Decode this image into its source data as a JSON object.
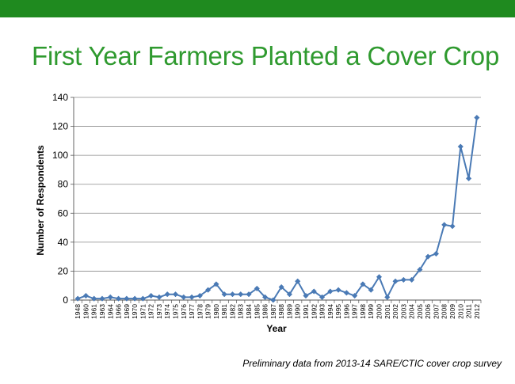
{
  "slide": {
    "title": "First Year Farmers Planted a Cover Crop",
    "footnote": "Preliminary data from 2013-14 SARE/CTIC cover crop survey",
    "accent_color": "#1f8a1f",
    "title_color": "#2f9a2f"
  },
  "chart_data": {
    "type": "line",
    "xlabel": "Year",
    "ylabel": "Number of Respondents",
    "ylim": [
      0,
      140
    ],
    "yticks": [
      0,
      20,
      40,
      60,
      80,
      100,
      120,
      140
    ],
    "grid": "horizontal",
    "series_color": "#4a7ab5",
    "categories": [
      "1948",
      "1960",
      "1961",
      "1963",
      "1964",
      "1966",
      "1969",
      "1970",
      "1971",
      "1972",
      "1973",
      "1974",
      "1975",
      "1976",
      "1977",
      "1978",
      "1979",
      "1980",
      "1981",
      "1982",
      "1983",
      "1984",
      "1985",
      "1986",
      "1987",
      "1988",
      "1989",
      "1990",
      "1991",
      "1992",
      "1993",
      "1994",
      "1995",
      "1996",
      "1997",
      "1998",
      "1999",
      "2000",
      "2001",
      "2002",
      "2003",
      "2004",
      "2005",
      "2006",
      "2007",
      "2008",
      "2009",
      "2010",
      "2011",
      "2012"
    ],
    "series": [
      {
        "values": [
          1,
          3,
          1,
          1,
          2,
          1,
          1,
          1,
          1,
          3,
          2,
          4,
          4,
          2,
          2,
          3,
          7,
          11,
          4,
          4,
          4,
          4,
          8,
          2,
          0,
          9,
          4,
          13,
          3,
          6,
          2,
          6,
          7,
          5,
          3,
          11,
          7,
          16,
          2,
          13,
          14,
          14,
          21,
          30,
          32,
          52,
          51,
          106,
          84,
          126
        ]
      }
    ]
  }
}
